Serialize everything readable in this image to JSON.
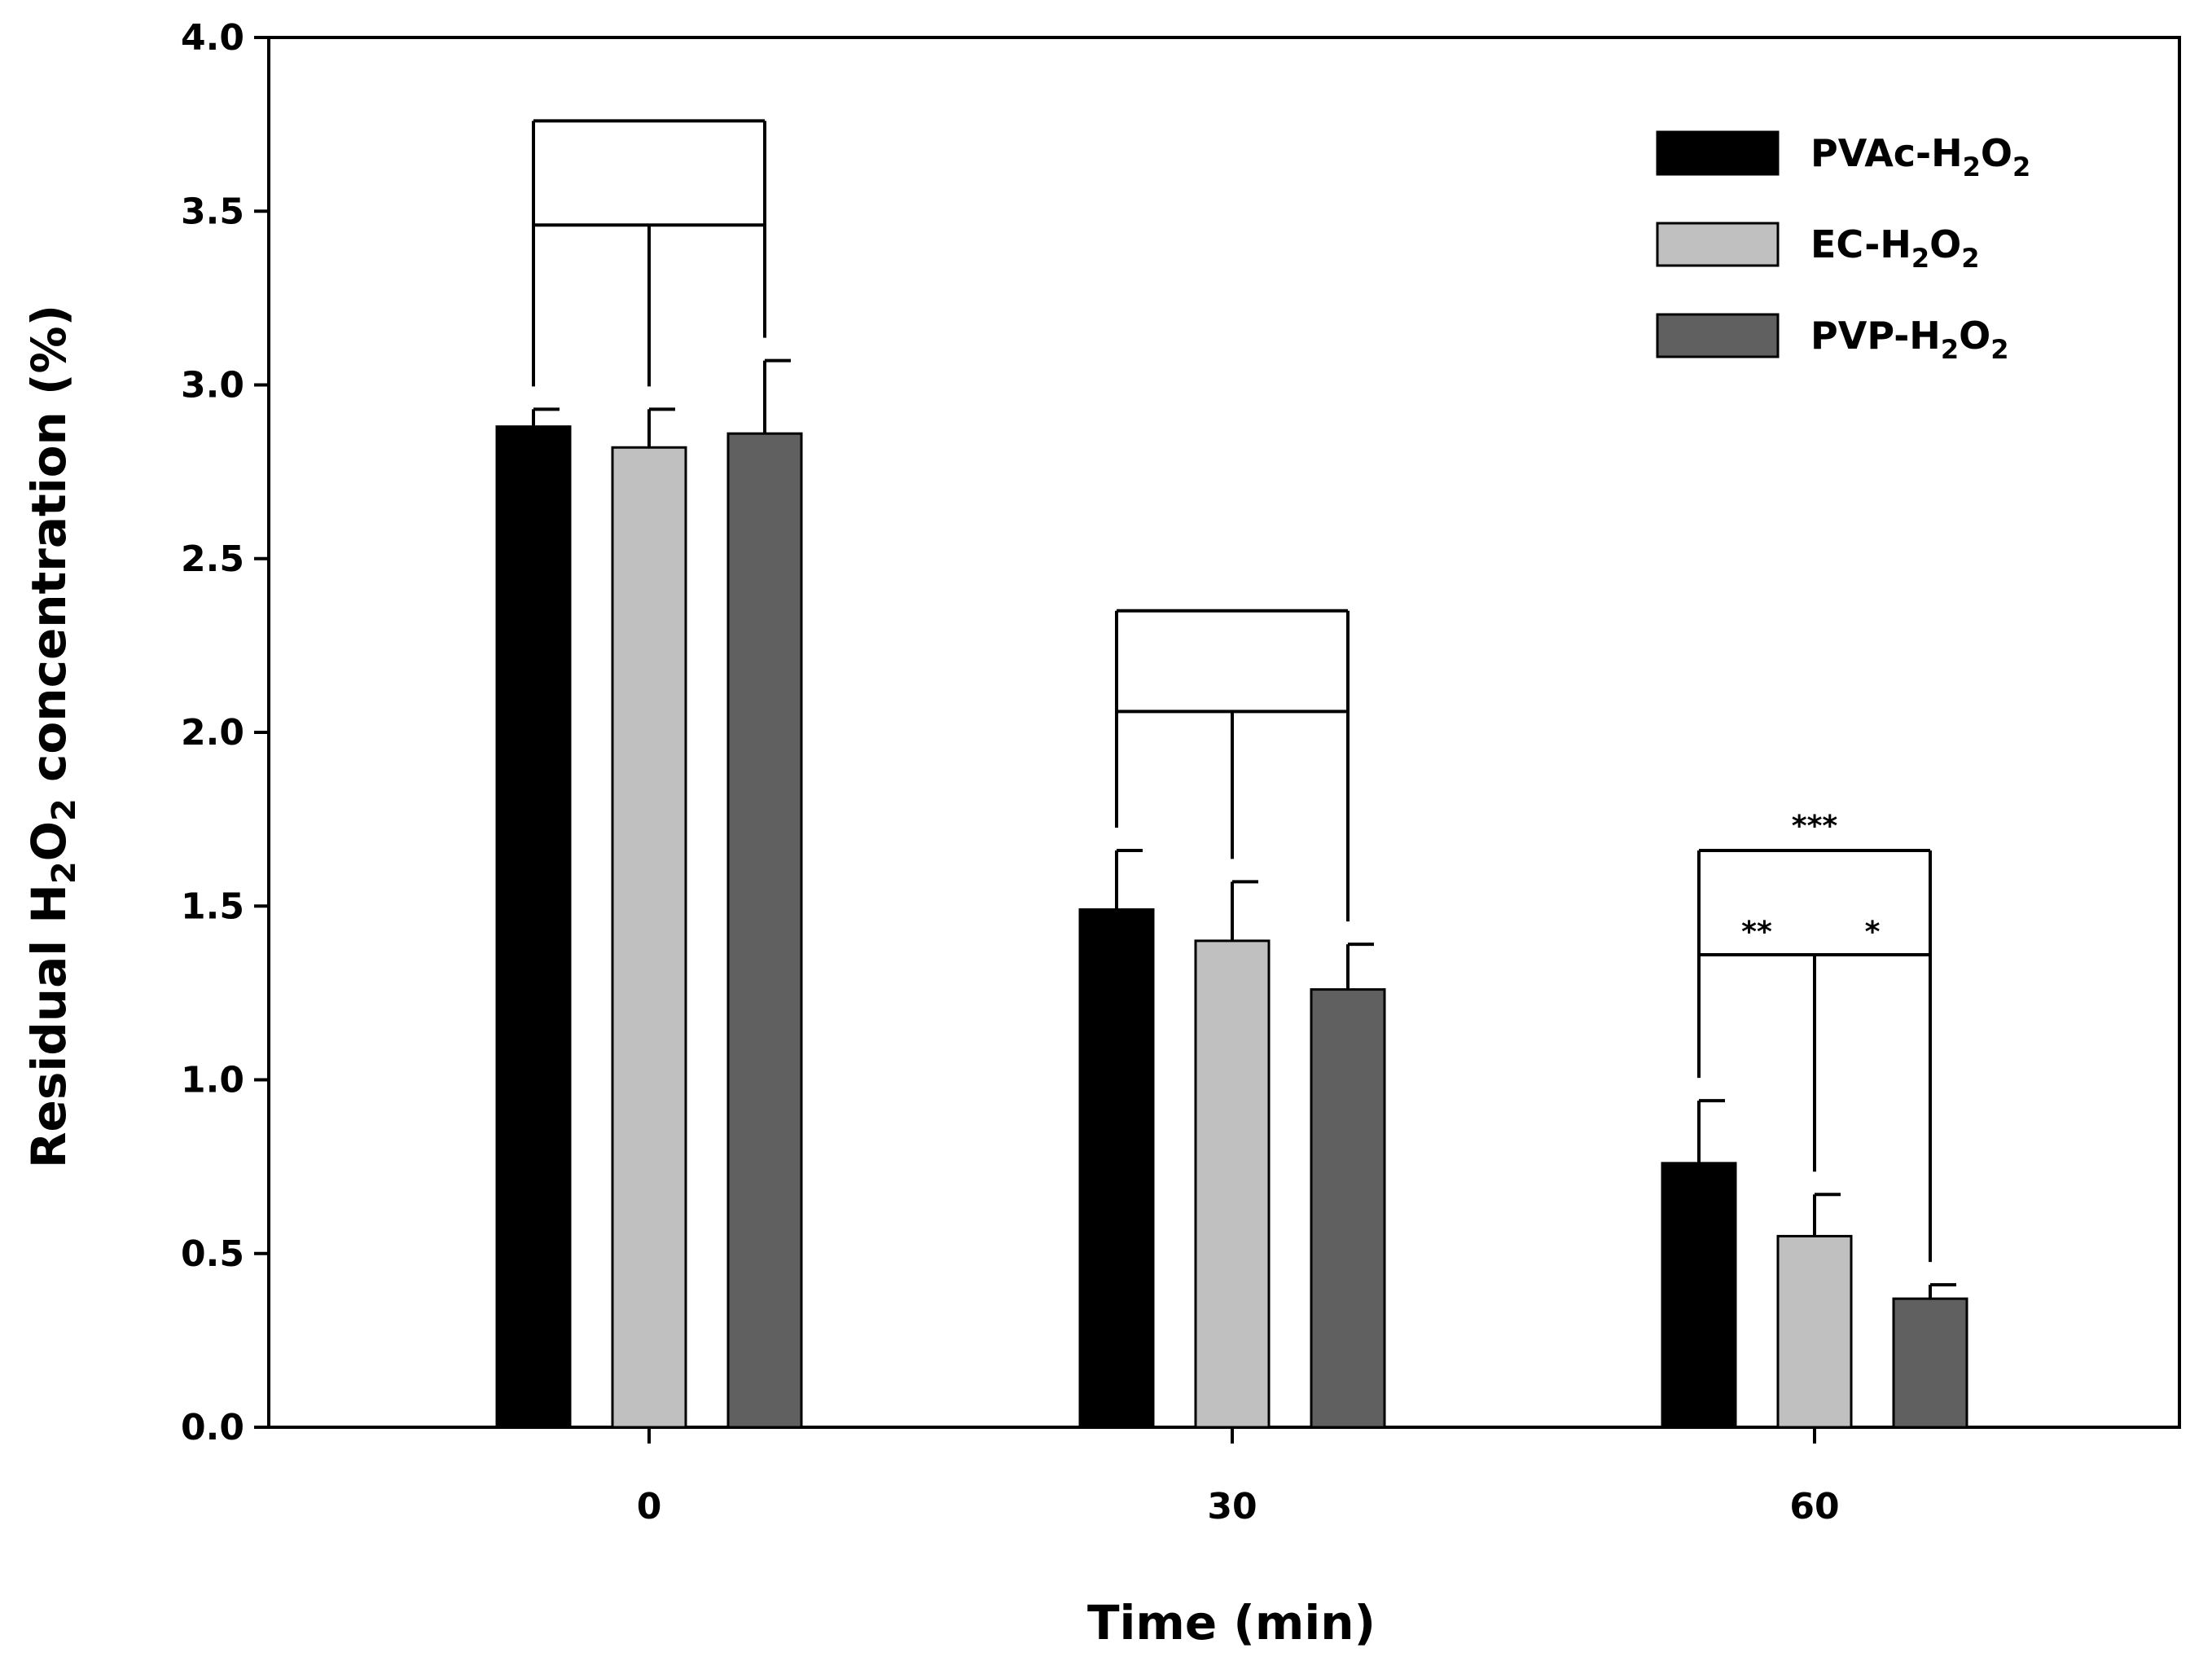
{
  "chart_data": {
    "type": "bar",
    "title": "",
    "xlabel": "Time (min)",
    "ylabel": {
      "prefix": "Residual H",
      "sub": "2",
      "mid": "O",
      "sub2": "2",
      "suffix": " concentration (%)"
    },
    "ylim": [
      0,
      4.0
    ],
    "yticks": [
      "0.0",
      "0.5",
      "1.0",
      "1.5",
      "2.0",
      "2.5",
      "3.0",
      "3.5",
      "4.0"
    ],
    "categories": [
      "0",
      "30",
      "60"
    ],
    "series": [
      {
        "name": "PVAc-H2O2",
        "label_parts": [
          "PVAc-H",
          "2",
          "O",
          "2"
        ],
        "color": "#000000",
        "values": [
          2.88,
          1.49,
          0.76
        ],
        "errors": [
          0.05,
          0.17,
          0.18
        ]
      },
      {
        "name": "EC-H2O2",
        "label_parts": [
          "EC-H",
          "2",
          "O",
          "2"
        ],
        "color": "#c0c0c0",
        "values": [
          2.82,
          1.4,
          0.55
        ],
        "errors": [
          0.11,
          0.17,
          0.12
        ]
      },
      {
        "name": "PVP-H2O2",
        "label_parts": [
          "PVP-H",
          "2",
          "O",
          "2"
        ],
        "color": "#606060",
        "values": [
          2.86,
          1.26,
          0.37
        ],
        "errors": [
          0.21,
          0.13,
          0.04
        ]
      }
    ],
    "significance": [
      {
        "category": "0",
        "outer_level": 3.76,
        "inner_level": 3.46,
        "labels": {
          "outer": "",
          "left": "",
          "right": ""
        }
      },
      {
        "category": "30",
        "outer_level": 2.35,
        "inner_level": 2.06,
        "labels": {
          "outer": "",
          "left": "",
          "right": ""
        }
      },
      {
        "category": "60",
        "outer_level": 1.66,
        "inner_level": 1.36,
        "labels": {
          "outer": "***",
          "left": "**",
          "right": "*"
        }
      }
    ],
    "legend_position": "top-right"
  }
}
